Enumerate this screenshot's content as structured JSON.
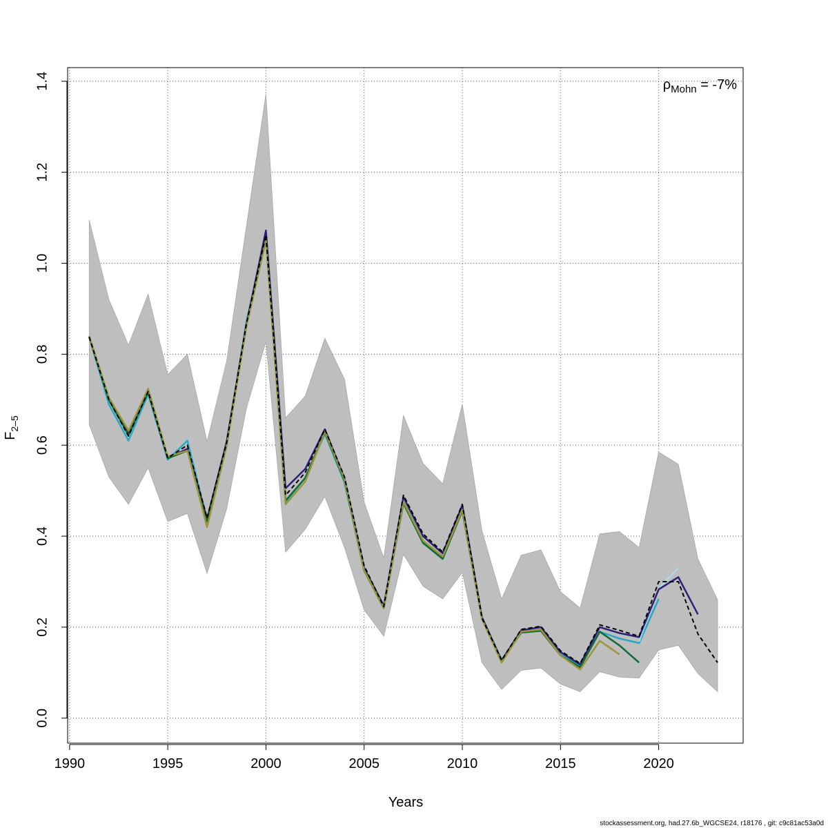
{
  "chart_data": {
    "type": "line",
    "xlabel": "Years",
    "ylabel_main": "F",
    "ylabel_sub": "2–5",
    "xlim": [
      1989.9,
      2024.3
    ],
    "ylim": [
      -0.055,
      1.43
    ],
    "x_ticks": [
      1990,
      1995,
      2000,
      2005,
      2010,
      2015,
      2020
    ],
    "y_ticks": [
      0.0,
      0.2,
      0.4,
      0.6,
      0.8,
      1.0,
      1.2,
      1.4
    ],
    "x_tick_labels": [
      "1990",
      "1995",
      "2000",
      "2005",
      "2010",
      "2015",
      "2020"
    ],
    "y_tick_labels": [
      "0.0",
      "0.2",
      "0.4",
      "0.6",
      "0.8",
      "1.0",
      "1.2",
      "1.4"
    ],
    "grid": true,
    "annotation": {
      "rho_symbol": "ρ",
      "rho_sub": "Mohn",
      "rho_value": " = -7%"
    },
    "confidence_band": {
      "color": "#bebebe",
      "x": [
        1991,
        1992,
        1993,
        1994,
        1995,
        1996,
        1997,
        1998,
        1999,
        2000,
        2001,
        2002,
        2003,
        2004,
        2005,
        2006,
        2007,
        2008,
        2009,
        2010,
        2011,
        2012,
        2013,
        2014,
        2015,
        2016,
        2017,
        2018,
        2019,
        2020,
        2021,
        2022,
        2023
      ],
      "lower": [
        0.645,
        0.53,
        0.47,
        0.55,
        0.432,
        0.45,
        0.318,
        0.46,
        0.68,
        0.828,
        0.365,
        0.415,
        0.487,
        0.375,
        0.238,
        0.18,
        0.36,
        0.29,
        0.262,
        0.32,
        0.122,
        0.063,
        0.105,
        0.11,
        0.075,
        0.058,
        0.102,
        0.09,
        0.088,
        0.15,
        0.16,
        0.098,
        0.058
      ],
      "upper": [
        1.095,
        0.92,
        0.82,
        0.932,
        0.755,
        0.8,
        0.608,
        0.785,
        1.08,
        1.372,
        0.66,
        0.708,
        0.835,
        0.745,
        0.475,
        0.352,
        0.665,
        0.56,
        0.515,
        0.69,
        0.412,
        0.262,
        0.358,
        0.37,
        0.278,
        0.242,
        0.405,
        0.41,
        0.375,
        0.585,
        0.558,
        0.35,
        0.26
      ]
    },
    "series": [
      {
        "color": "#26a9c4",
        "width": 2.5,
        "x": [
          1991,
          1992,
          1993,
          1994,
          1995,
          1996,
          1997,
          1998,
          1999,
          2000,
          2001,
          2002,
          2003,
          2004,
          2005,
          2006,
          2007,
          2008,
          2009,
          2010,
          2011,
          2012,
          2013,
          2014,
          2015,
          2016,
          2017,
          2018,
          2019,
          2020
        ],
        "values": [
          0.838,
          0.69,
          0.61,
          0.712,
          0.568,
          0.61,
          0.435,
          0.6,
          0.87,
          1.062,
          0.475,
          0.528,
          0.625,
          0.518,
          0.325,
          0.245,
          0.476,
          0.39,
          0.352,
          0.455,
          0.218,
          0.128,
          0.19,
          0.195,
          0.14,
          0.115,
          0.19,
          0.175,
          0.165,
          0.262
        ]
      },
      {
        "color": "#aadcf0",
        "width": 2,
        "x": [
          2019,
          2020,
          2021
        ],
        "values": [
          0.168,
          0.285,
          0.33
        ]
      },
      {
        "color": "#2c1f7a",
        "width": 2.5,
        "x": [
          1991,
          1992,
          1993,
          1994,
          1995,
          1996,
          1997,
          1998,
          1999,
          2000,
          2001,
          2002,
          2003,
          2004,
          2005,
          2006,
          2007,
          2008,
          2009,
          2010,
          2011,
          2012,
          2013,
          2014,
          2015,
          2016,
          2017,
          2018,
          2019,
          2020,
          2021,
          2022
        ],
        "values": [
          0.838,
          0.702,
          0.625,
          0.72,
          0.572,
          0.592,
          0.438,
          0.608,
          0.865,
          1.072,
          0.505,
          0.548,
          0.635,
          0.527,
          0.33,
          0.247,
          0.486,
          0.4,
          0.362,
          0.468,
          0.222,
          0.127,
          0.193,
          0.2,
          0.145,
          0.118,
          0.2,
          0.187,
          0.178,
          0.283,
          0.31,
          0.228
        ]
      },
      {
        "color": "#0e6a38",
        "width": 2.5,
        "x": [
          1991,
          1992,
          1993,
          1994,
          1995,
          1996,
          1997,
          1998,
          1999,
          2000,
          2001,
          2002,
          2003,
          2004,
          2005,
          2006,
          2007,
          2008,
          2009,
          2010,
          2011,
          2012,
          2013,
          2014,
          2015,
          2016,
          2017,
          2018,
          2019
        ],
        "values": [
          0.838,
          0.7,
          0.622,
          0.717,
          0.571,
          0.588,
          0.432,
          0.6,
          0.862,
          1.055,
          0.478,
          0.528,
          0.628,
          0.522,
          0.324,
          0.242,
          0.472,
          0.385,
          0.35,
          0.456,
          0.218,
          0.126,
          0.188,
          0.192,
          0.138,
          0.112,
          0.19,
          0.16,
          0.122
        ]
      },
      {
        "color": "#9b9538",
        "width": 2.5,
        "x": [
          1991,
          1992,
          1993,
          1994,
          1995,
          1996,
          1997,
          1998,
          1999,
          2000,
          2001,
          2002,
          2003,
          2004,
          2005,
          2006,
          2007,
          2008,
          2009,
          2010,
          2011,
          2012,
          2013,
          2014,
          2015,
          2016,
          2017,
          2018
        ],
        "values": [
          0.84,
          0.705,
          0.632,
          0.724,
          0.575,
          0.588,
          0.42,
          0.598,
          0.86,
          1.05,
          0.47,
          0.52,
          0.63,
          0.525,
          0.325,
          0.243,
          0.475,
          0.39,
          0.355,
          0.458,
          0.218,
          0.122,
          0.19,
          0.195,
          0.138,
          0.107,
          0.17,
          0.14
        ]
      },
      {
        "color": "#000000",
        "width": 2,
        "dash": "6,4",
        "x": [
          1991,
          1992,
          1993,
          1994,
          1995,
          1996,
          1997,
          1998,
          1999,
          2000,
          2001,
          2002,
          2003,
          2004,
          2005,
          2006,
          2007,
          2008,
          2009,
          2010,
          2011,
          2012,
          2013,
          2014,
          2015,
          2016,
          2017,
          2018,
          2019,
          2020,
          2021,
          2022,
          2023
        ],
        "values": [
          0.838,
          0.7,
          0.62,
          0.718,
          0.572,
          0.6,
          0.44,
          0.605,
          0.866,
          1.062,
          0.49,
          0.54,
          0.635,
          0.53,
          0.335,
          0.245,
          0.49,
          0.405,
          0.365,
          0.47,
          0.22,
          0.127,
          0.195,
          0.202,
          0.148,
          0.12,
          0.205,
          0.193,
          0.18,
          0.3,
          0.3,
          0.185,
          0.122
        ]
      }
    ]
  },
  "footer": "stockassessment.org, had.27.6b_WGCSE24, r18176 , git: c9c81ac53a0d"
}
